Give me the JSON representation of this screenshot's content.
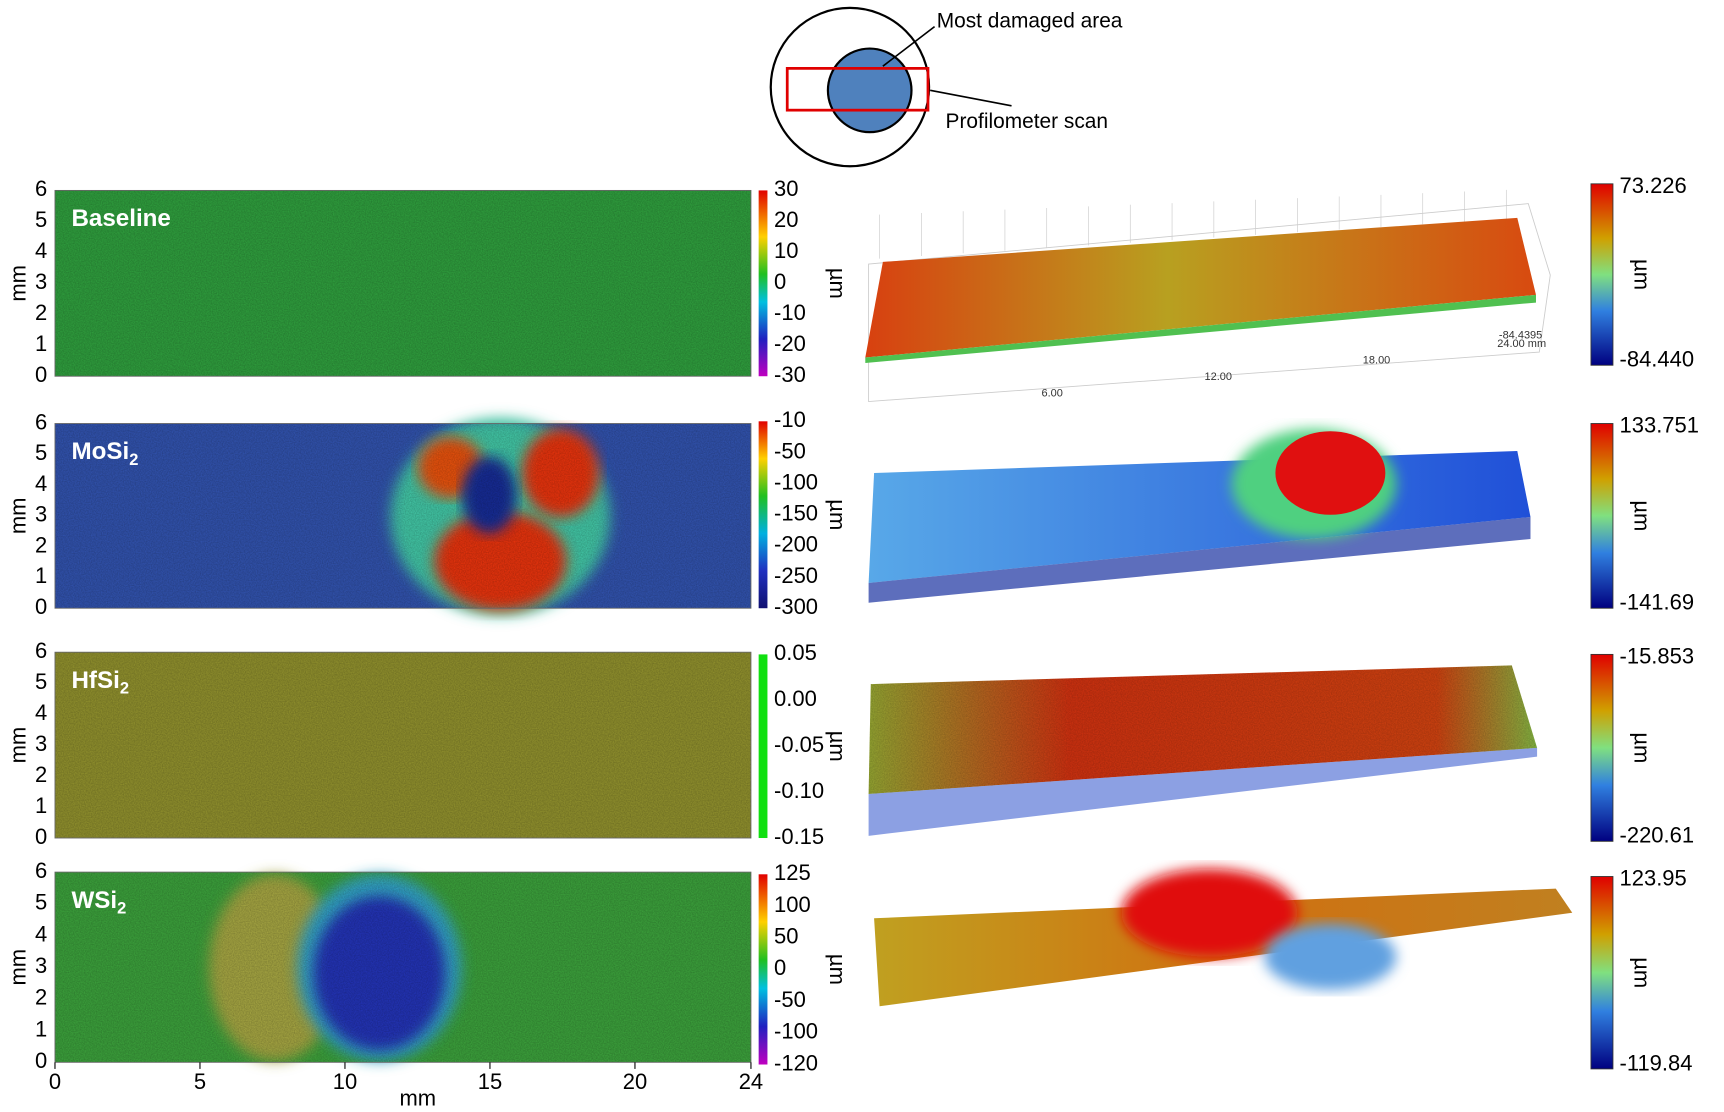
{
  "schematic": {
    "damaged_label": "Most damaged area",
    "scan_label": "Profilometer scan"
  },
  "axes": {
    "y_label": "mm",
    "x_label": "mm",
    "yticks": [
      "0",
      "1",
      "2",
      "3",
      "4",
      "5",
      "6"
    ],
    "xticks": [
      "0",
      "5",
      "10",
      "15",
      "20",
      "24"
    ]
  },
  "panels": [
    {
      "label": "Baseline",
      "label_sub": null,
      "colorbar_unit": "µm",
      "colorbar_ticks": [
        "30",
        "20",
        "10",
        "0",
        "-10",
        "-20",
        "-30"
      ],
      "surface_unit": "µm",
      "surface_max": "73.226",
      "surface_min": "-84.440",
      "surface_axis_labels": [
        "6.00",
        "12.00",
        "18.00",
        "24.00 mm",
        "-84.4395"
      ]
    },
    {
      "label": "MoSi",
      "label_sub": "2",
      "colorbar_unit": "µm",
      "colorbar_ticks": [
        "-10",
        "-50",
        "-100",
        "-150",
        "-200",
        "-250",
        "-300"
      ],
      "surface_unit": "µm",
      "surface_max": "133.751",
      "surface_min": "-141.69"
    },
    {
      "label": "HfSi",
      "label_sub": "2",
      "colorbar_unit": "µm",
      "colorbar_ticks": [
        "0.05",
        "0.00",
        "-0.05",
        "-0.10",
        "-0.15"
      ],
      "surface_unit": "µm",
      "surface_max": "-15.853",
      "surface_min": "-220.61"
    },
    {
      "label": "WSi",
      "label_sub": "2",
      "colorbar_unit": "µm",
      "colorbar_ticks": [
        "125",
        "100",
        "50",
        "0",
        "-50",
        "-100",
        "-120"
      ],
      "surface_unit": "µm",
      "surface_max": "123.95",
      "surface_min": "-119.84"
    }
  ]
}
